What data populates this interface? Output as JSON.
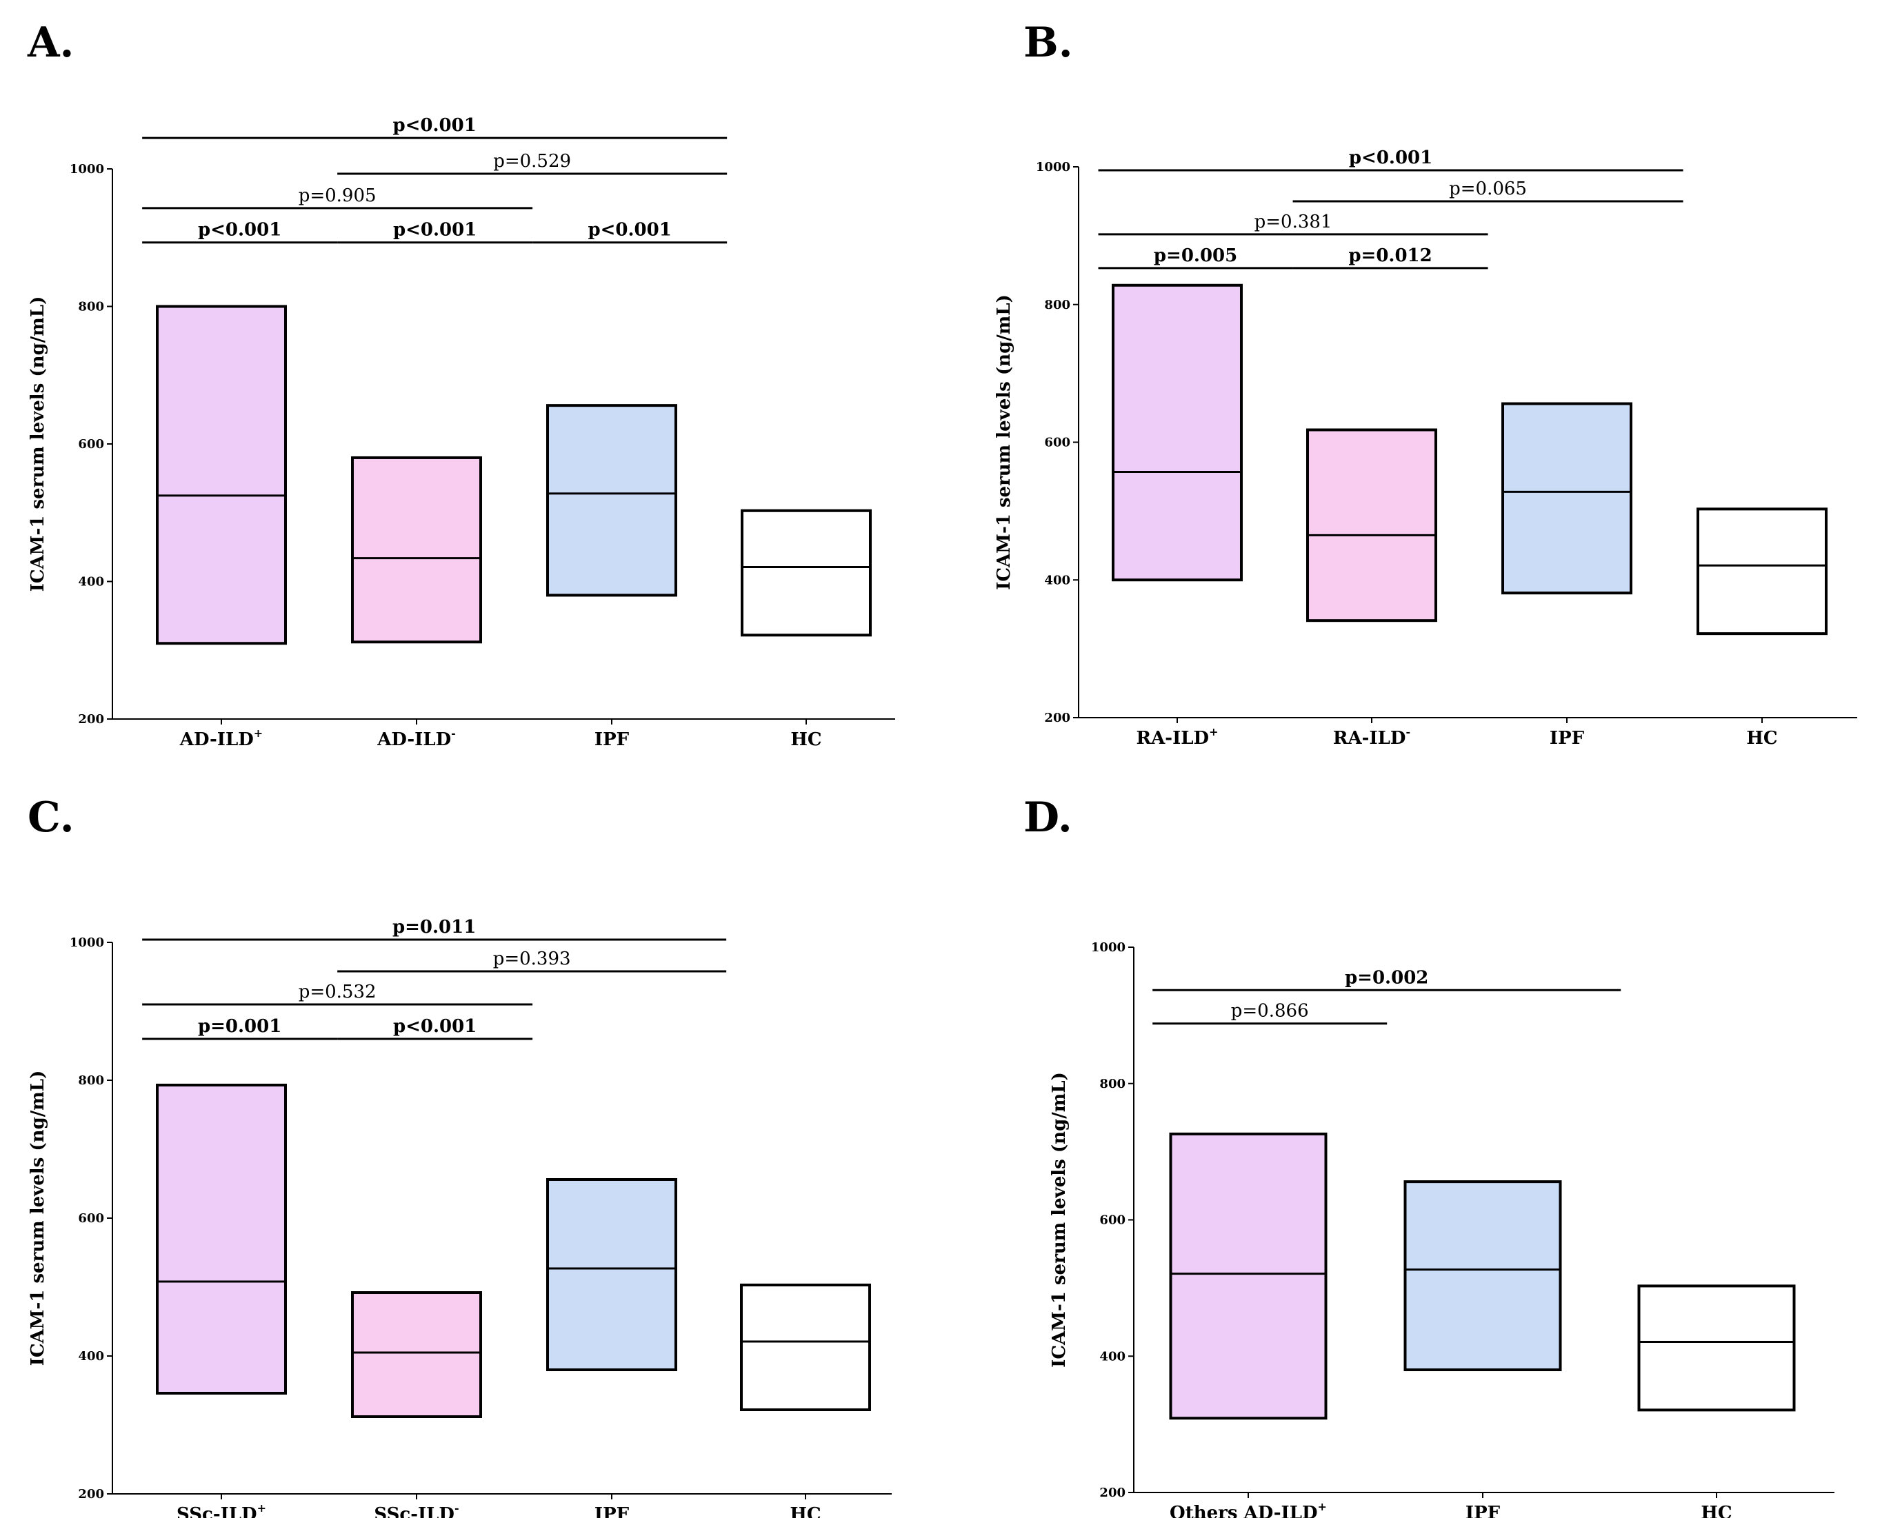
{
  "chart_data": [
    {
      "panel_label": "A.",
      "type": "box",
      "ylabel": "ICAM-1 serum levels (ng/mL)",
      "ylim": [
        200,
        1000
      ],
      "yticks": [
        200,
        400,
        600,
        800,
        1000
      ],
      "groups": [
        {
          "label": "AD-ILD",
          "sup": "+",
          "q1": 310,
          "median": 525,
          "q3": 800,
          "color": "#efcdf9"
        },
        {
          "label": "AD-ILD",
          "sup": "-",
          "q1": 312,
          "median": 434,
          "q3": 580,
          "color": "#f9cdf0"
        },
        {
          "label": "IPF",
          "sup": "",
          "q1": 380,
          "median": 528,
          "q3": 656,
          "color": "#cadcf6"
        },
        {
          "label": "HC",
          "sup": "",
          "q1": 322,
          "median": 421,
          "q3": 503,
          "color": "#ffffff"
        }
      ],
      "comparisons": [
        {
          "from": 0,
          "to": 3,
          "y": 1045,
          "text": "p<0.001",
          "bold": true
        },
        {
          "from": 1,
          "to": 3,
          "y": 993,
          "text": "p=0.529",
          "bold": false
        },
        {
          "from": 0,
          "to": 2,
          "y": 943,
          "text": "p=0.905",
          "bold": false
        },
        {
          "from": 0,
          "to": 1,
          "y": 893,
          "text": "p<0.001",
          "bold": true
        },
        {
          "from": 1,
          "to": 2,
          "y": 893,
          "text": "p<0.001",
          "bold": true
        },
        {
          "from": 2,
          "to": 3,
          "y": 893,
          "text": "p<0.001",
          "bold": true
        }
      ]
    },
    {
      "panel_label": "B.",
      "type": "box",
      "ylabel": "ICAM-1 serum levels (ng/mL)",
      "ylim": [
        200,
        1000
      ],
      "yticks": [
        200,
        400,
        600,
        800,
        1000
      ],
      "groups": [
        {
          "label": "RA-ILD",
          "sup": "+",
          "q1": 400,
          "median": 557,
          "q3": 828,
          "color": "#efcdf9"
        },
        {
          "label": "RA-ILD",
          "sup": "-",
          "q1": 341,
          "median": 465,
          "q3": 618,
          "color": "#f9cdf0"
        },
        {
          "label": "IPF",
          "sup": "",
          "q1": 381,
          "median": 528,
          "q3": 656,
          "color": "#cadcf6"
        },
        {
          "label": "HC",
          "sup": "",
          "q1": 322,
          "median": 421,
          "q3": 503,
          "color": "#ffffff"
        }
      ],
      "comparisons": [
        {
          "from": 0,
          "to": 3,
          "y": 995,
          "text": "p<0.001",
          "bold": true
        },
        {
          "from": 1,
          "to": 3,
          "y": 950,
          "text": "p=0.065",
          "bold": false
        },
        {
          "from": 0,
          "to": 2,
          "y": 902,
          "text": "p=0.381",
          "bold": false
        },
        {
          "from": 0,
          "to": 1,
          "y": 853,
          "text": "p=0.005",
          "bold": true
        },
        {
          "from": 1,
          "to": 2,
          "y": 853,
          "text": "p=0.012",
          "bold": true
        }
      ]
    },
    {
      "panel_label": "C.",
      "type": "box",
      "ylabel": "ICAM-1 serum levels (ng/mL)",
      "ylim": [
        200,
        1000
      ],
      "yticks": [
        200,
        400,
        600,
        800,
        1000
      ],
      "groups": [
        {
          "label": "SSc-ILD",
          "sup": "+",
          "q1": 346,
          "median": 508,
          "q3": 793,
          "color": "#efcdf9"
        },
        {
          "label": "SSc-ILD",
          "sup": "-",
          "q1": 312,
          "median": 405,
          "q3": 492,
          "color": "#f9cdf0"
        },
        {
          "label": "IPF",
          "sup": "",
          "q1": 380,
          "median": 527,
          "q3": 656,
          "color": "#cadcf6"
        },
        {
          "label": "HC",
          "sup": "",
          "q1": 322,
          "median": 421,
          "q3": 503,
          "color": "#ffffff"
        }
      ],
      "comparisons": [
        {
          "from": 0,
          "to": 3,
          "y": 1004,
          "text": "p=0.011",
          "bold": true
        },
        {
          "from": 1,
          "to": 3,
          "y": 958,
          "text": "p=0.393",
          "bold": false
        },
        {
          "from": 0,
          "to": 2,
          "y": 910,
          "text": "p=0.532",
          "bold": false
        },
        {
          "from": 0,
          "to": 1,
          "y": 860,
          "text": "p=0.001",
          "bold": true
        },
        {
          "from": 1,
          "to": 2,
          "y": 860,
          "text": "p<0.001",
          "bold": true
        }
      ]
    },
    {
      "panel_label": "D.",
      "type": "box",
      "ylabel": "ICAM-1 serum levels (ng/mL)",
      "ylim": [
        200,
        1000
      ],
      "yticks": [
        200,
        400,
        600,
        800,
        1000
      ],
      "groups": [
        {
          "label": "Others AD-ILD",
          "sup": "+",
          "q1": 309,
          "median": 521,
          "q3": 726,
          "color": "#efcdf9"
        },
        {
          "label": "IPF",
          "sup": "",
          "q1": 380,
          "median": 527,
          "q3": 656,
          "color": "#cadcf6"
        },
        {
          "label": "HC",
          "sup": "",
          "q1": 321,
          "median": 421,
          "q3": 503,
          "color": "#ffffff"
        }
      ],
      "comparisons": [
        {
          "from": 0,
          "to": 2,
          "y": 937,
          "text": "p=0.002",
          "bold": true
        },
        {
          "from": 0,
          "to": 1,
          "y": 888,
          "text": "p=0.866",
          "bold": false
        }
      ]
    }
  ]
}
